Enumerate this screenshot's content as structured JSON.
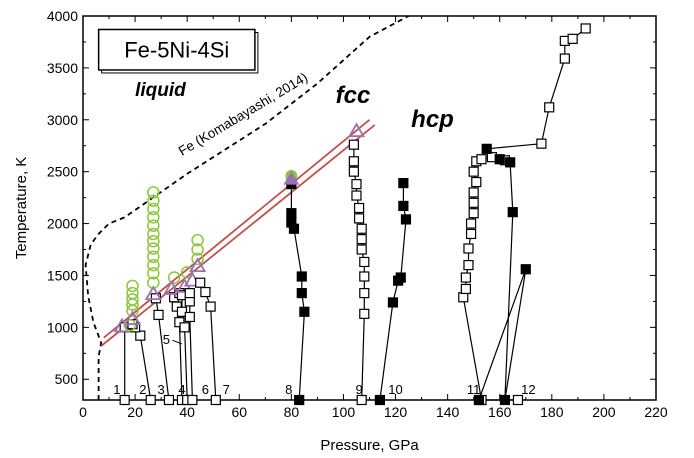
{
  "chart_data": {
    "type": "scatter",
    "title": "Fe-5Ni-4Si",
    "xlabel": "Pressure, GPa",
    "ylabel": "Temperature, K",
    "xlim": [
      0,
      220
    ],
    "ylim": [
      300,
      4000
    ],
    "xticks": [
      0,
      20,
      40,
      60,
      80,
      100,
      120,
      140,
      160,
      180,
      200,
      220
    ],
    "yticks": [
      500,
      1000,
      1500,
      2000,
      2500,
      3000,
      3500,
      4000
    ],
    "grid": false,
    "legend": "none",
    "phase_labels": {
      "liquid": "liquid",
      "fcc": "fcc",
      "hcp": "hcp"
    },
    "reference_label": "Fe (Komabayashi, 2014)",
    "colors": {
      "fcc_boundary": "#c0504d",
      "molten": "#8dc63f",
      "triangle": "#9b72b0",
      "fill_black": "#000000"
    },
    "fe_melting_curve": [
      [
        6,
        300
      ],
      [
        6,
        720
      ],
      [
        7,
        850
      ],
      [
        4,
        1050
      ],
      [
        2,
        1300
      ],
      [
        1,
        1600
      ],
      [
        3,
        1800
      ],
      [
        6,
        1900
      ],
      [
        10,
        2000
      ],
      [
        16,
        2060
      ],
      [
        40,
        2480
      ],
      [
        70,
        2960
      ],
      [
        90,
        3350
      ],
      [
        110,
        3800
      ],
      [
        125,
        4000
      ]
    ],
    "fcc_boundary_upper": [
      [
        8,
        900
      ],
      [
        110,
        3000
      ]
    ],
    "fcc_boundary_lower": [
      [
        7,
        820
      ],
      [
        112,
        2950
      ]
    ],
    "experiments": [
      {
        "label": "1",
        "label_pos": [
          13,
          300
        ],
        "quenched": [
          [
            16,
            300
          ],
          [
            16,
            1000
          ]
        ],
        "black": [],
        "open": [],
        "molten": [],
        "molten_triangle": [],
        "triangle": [
          [
            15,
            1010
          ]
        ]
      },
      {
        "label": "2",
        "label_pos": [
          23,
          300
        ],
        "quenched": [
          [
            26,
            300
          ],
          [
            22,
            920
          ],
          [
            20,
            1000
          ],
          [
            19,
            1030
          ]
        ],
        "black": [],
        "open": [],
        "molten": [
          [
            18,
            1020
          ],
          [
            19,
            1160
          ],
          [
            19,
            1220
          ],
          [
            19,
            1270
          ],
          [
            19,
            1330
          ],
          [
            19,
            1400
          ]
        ],
        "molten_triangle": [],
        "triangle": [
          [
            19,
            1080
          ]
        ]
      },
      {
        "label": "3",
        "label_pos": [
          30,
          300
        ],
        "quenched": [
          [
            33,
            300
          ],
          [
            29,
            1120
          ],
          [
            28,
            1280
          ]
        ],
        "black": [],
        "open": [],
        "molten": [
          [
            27,
            1430
          ],
          [
            27,
            1520
          ],
          [
            27,
            1600
          ],
          [
            27,
            1680
          ],
          [
            27,
            1760
          ],
          [
            27,
            1830
          ],
          [
            27,
            1900
          ],
          [
            27,
            1980
          ],
          [
            27,
            2060
          ],
          [
            27,
            2140
          ],
          [
            27,
            2220
          ],
          [
            27,
            2300
          ]
        ],
        "molten_triangle": [],
        "triangle": [
          [
            27,
            1320
          ]
        ]
      },
      {
        "label": "4",
        "label_pos": [
          38,
          300
        ],
        "quenched": [
          [
            38,
            300
          ],
          [
            37,
            1050
          ],
          [
            36,
            1200
          ],
          [
            35,
            1290
          ],
          [
            37,
            1330
          ]
        ],
        "black": [],
        "open": [],
        "molten": [
          [
            35,
            1480
          ]
        ],
        "molten_triangle": [],
        "triangle": [
          [
            34,
            1370
          ]
        ]
      },
      {
        "label": "5",
        "label_pos": [
          32,
          780
        ],
        "quenched": [
          [
            40,
            300
          ],
          [
            39,
            1000
          ],
          [
            38,
            1150
          ],
          [
            38,
            1310
          ]
        ],
        "black": [],
        "open": [],
        "molten": [
          [
            40,
            1530
          ]
        ],
        "molten_triangle": [],
        "triangle": [
          [
            39,
            1390
          ]
        ]
      },
      {
        "label": "6",
        "label_pos": [
          47,
          300
        ],
        "quenched": [
          [
            42,
            300
          ],
          [
            41,
            1100
          ],
          [
            41,
            1250
          ],
          [
            41,
            1330
          ]
        ],
        "black": [],
        "open": [],
        "molten": [
          [
            44,
            1660
          ],
          [
            44,
            1750
          ],
          [
            44,
            1840
          ]
        ],
        "molten_triangle": [],
        "triangle": [
          [
            42,
            1450
          ],
          [
            44,
            1590
          ]
        ]
      },
      {
        "label": "7",
        "label_pos": [
          55,
          300
        ],
        "quenched": [
          [
            51,
            300
          ],
          [
            49,
            1200
          ],
          [
            47,
            1340
          ],
          [
            45,
            1430
          ]
        ],
        "black": [],
        "open": [],
        "molten": [],
        "molten_triangle": [],
        "triangle": []
      },
      {
        "label": "8",
        "label_pos": [
          79,
          300
        ],
        "quenched": [],
        "black": [
          [
            83,
            300
          ],
          [
            85,
            1150
          ],
          [
            84,
            1330
          ],
          [
            84,
            1490
          ],
          [
            81,
            1950
          ],
          [
            80,
            2010
          ],
          [
            80,
            2100
          ],
          [
            80,
            2380
          ]
        ],
        "open": [],
        "molten": [],
        "molten_triangle": [
          [
            80,
            2460
          ]
        ],
        "triangle": []
      },
      {
        "label": "9",
        "label_pos": [
          106,
          300
        ],
        "quenched": [
          [
            107,
            300
          ],
          [
            108,
            1130
          ],
          [
            108,
            1330
          ],
          [
            108,
            1490
          ],
          [
            108,
            1630
          ],
          [
            107,
            1750
          ],
          [
            107,
            1850
          ],
          [
            107,
            1950
          ],
          [
            106,
            2050
          ],
          [
            106,
            2150
          ],
          [
            105,
            2270
          ],
          [
            105,
            2380
          ],
          [
            104,
            2500
          ],
          [
            104,
            2600
          ],
          [
            104,
            2760
          ]
        ],
        "black": [],
        "open": [],
        "molten": [],
        "molten_triangle": [],
        "triangle": [
          [
            105,
            2890
          ]
        ]
      },
      {
        "label": "10",
        "label_pos": [
          120,
          300
        ],
        "quenched": [],
        "black": [
          [
            114,
            300
          ],
          [
            119,
            1240
          ],
          [
            121,
            1450
          ],
          [
            122,
            1480
          ],
          [
            124,
            2040
          ],
          [
            123,
            2170
          ],
          [
            123,
            2390
          ]
        ],
        "open": [],
        "molten": [],
        "molten_triangle": [],
        "triangle": []
      },
      {
        "label": "11",
        "label_pos": [
          150,
          300
        ],
        "quenched": [
          [
            153,
            300
          ],
          [
            146,
            1290
          ],
          [
            147,
            1370
          ],
          [
            147,
            1480
          ],
          [
            148,
            1600
          ],
          [
            148,
            1760
          ],
          [
            149,
            1900
          ],
          [
            149,
            2000
          ],
          [
            150,
            2100
          ],
          [
            150,
            2200
          ],
          [
            150,
            2300
          ],
          [
            151,
            2400
          ],
          [
            150,
            2500
          ],
          [
            151,
            2600
          ],
          [
            153,
            2620
          ],
          [
            157,
            2640
          ],
          [
            162,
            2610
          ]
        ],
        "black": [],
        "open": [],
        "molten": [],
        "molten_triangle": [],
        "triangle": []
      },
      {
        "label": "12",
        "label_pos": [
          171,
          300
        ],
        "quenched": [
          [
            167,
            300
          ]
        ],
        "black": [
          [
            152,
            300
          ],
          [
            170,
            1560
          ],
          [
            162,
            300
          ],
          [
            165,
            2110
          ],
          [
            164,
            2590
          ],
          [
            160,
            2620
          ],
          [
            155,
            2720
          ]
        ],
        "open": [
          [
            176,
            2770
          ],
          [
            179,
            3120
          ],
          [
            185,
            3590
          ],
          [
            185,
            3760
          ],
          [
            188,
            3780
          ],
          [
            193,
            3880
          ]
        ],
        "molten": [],
        "molten_triangle": [],
        "triangle": []
      }
    ]
  }
}
